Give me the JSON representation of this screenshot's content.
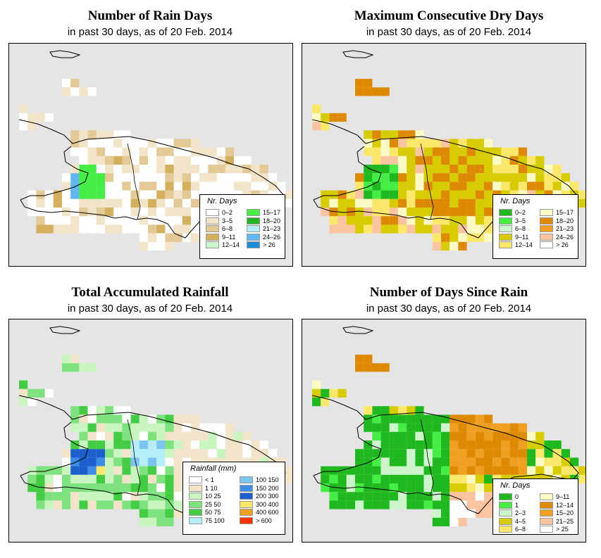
{
  "panels": [
    {
      "id": "rain-days",
      "title": "Number of Rain Days",
      "subtitle": "in past 30 days, as of  20 Feb. 2014",
      "legend_title": "Nr. Days",
      "legend": [
        {
          "label": "0–2",
          "color": "#ffffff"
        },
        {
          "label": "3–5",
          "color": "#f1e4c8"
        },
        {
          "label": "6–8",
          "color": "#e2c995"
        },
        {
          "label": "9–11",
          "color": "#d4af5d"
        },
        {
          "label": "12–14",
          "color": "#ccf5cc"
        },
        {
          "label": "15–17",
          "color": "#44ee44"
        },
        {
          "label": "18–20",
          "color": "#22b422"
        },
        {
          "label": "21–23",
          "color": "#b5eef9"
        },
        {
          "label": "24–26",
          "color": "#5fb6f0"
        },
        {
          "label": "> 26",
          "color": "#1e8fd4"
        }
      ]
    },
    {
      "id": "max-dry-days",
      "title": "Maximum Consecutive Dry Days",
      "subtitle": "in past 30 days, as of  20 Feb. 2014",
      "legend_title": "Nr. Days",
      "legend": [
        {
          "label": "0–2",
          "color": "#1fb81f"
        },
        {
          "label": "3–5",
          "color": "#44ee44"
        },
        {
          "label": "6–8",
          "color": "#ccf5cc"
        },
        {
          "label": "9–11",
          "color": "#d6cc00"
        },
        {
          "label": "12–14",
          "color": "#fbe86a"
        },
        {
          "label": "15–17",
          "color": "#fdfbc4"
        },
        {
          "label": "18–20",
          "color": "#dd8a00"
        },
        {
          "label": "21–23",
          "color": "#f0a020"
        },
        {
          "label": "24–26",
          "color": "#fbc4a0"
        },
        {
          "label": "> 26",
          "color": "#ffffff"
        }
      ]
    },
    {
      "id": "total-rainfall",
      "title": "Total Accumulated Rainfall",
      "subtitle": "in past 30 days, as of  20 Feb. 2014",
      "legend_title": "Rainfall (mm)",
      "legend": [
        {
          "label": "< 1",
          "color": "#ffffff"
        },
        {
          "label": "1   10",
          "color": "#f1e4c8"
        },
        {
          "label": "10   25",
          "color": "#c8f5c0"
        },
        {
          "label": "25   50",
          "color": "#7ee27e"
        },
        {
          "label": "50   75",
          "color": "#44cc44"
        },
        {
          "label": "75  100",
          "color": "#b5eef9"
        },
        {
          "label": "100  150",
          "color": "#7ec4f0"
        },
        {
          "label": "150  200",
          "color": "#3c8ee6"
        },
        {
          "label": "200  300",
          "color": "#1a5fcc"
        },
        {
          "label": "300  400",
          "color": "#fbe86a"
        },
        {
          "label": "400  600",
          "color": "#f0a020"
        },
        {
          "label": "> 600",
          "color": "#ff3300"
        }
      ]
    },
    {
      "id": "days-since-rain",
      "title": "Number of Days Since Rain",
      "subtitle": "in past 30 days, as of  20 Feb. 2014",
      "legend_title": "Nr. Days",
      "legend": [
        {
          "label": "0",
          "color": "#1fb81f"
        },
        {
          "label": "1",
          "color": "#44ee44"
        },
        {
          "label": "2–3",
          "color": "#ccf5cc"
        },
        {
          "label": "4–5",
          "color": "#d6cc00"
        },
        {
          "label": "6–8",
          "color": "#fbe86a"
        },
        {
          "label": "9–11",
          "color": "#fdfbc4"
        },
        {
          "label": "12–14",
          "color": "#dd8a00"
        },
        {
          "label": "15–20",
          "color": "#f0a020"
        },
        {
          "label": "21–25",
          "color": "#fbc4a0"
        },
        {
          "label": "> 25",
          "color": "#ffffff"
        }
      ]
    }
  ]
}
